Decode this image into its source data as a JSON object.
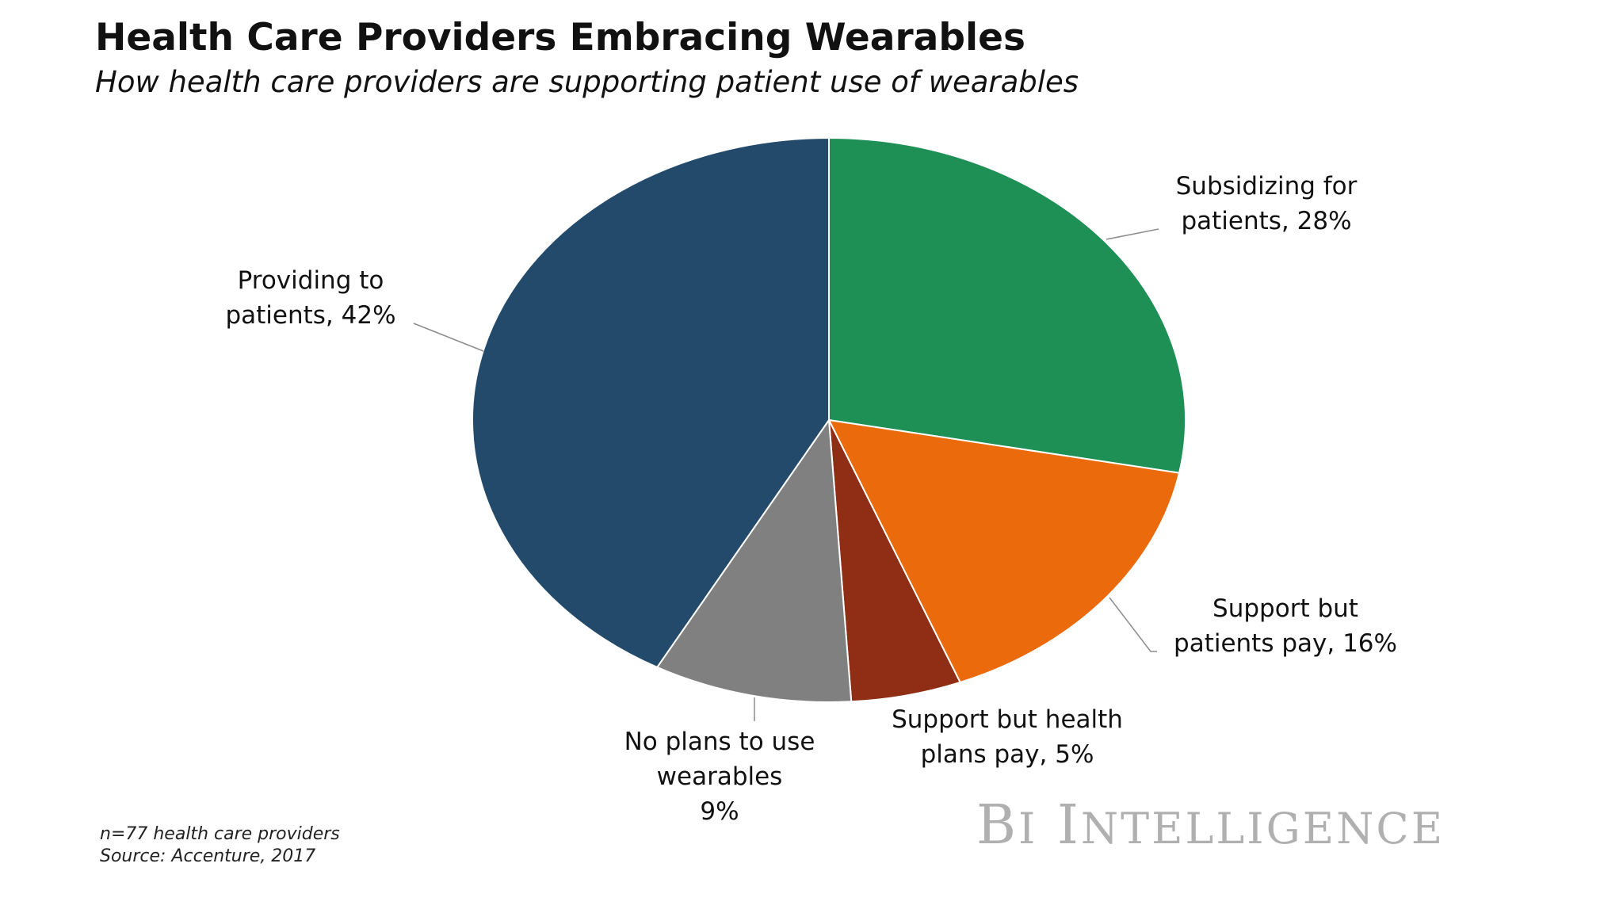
{
  "chart_data": {
    "type": "pie",
    "title": "Health Care Providers Embracing Wearables",
    "subtitle": "How health care providers are supporting patient use of wearables",
    "slices": [
      {
        "name": "Subsidizing for patients",
        "value": 28,
        "label_lines": [
          "Subsidizing for",
          "patients, 28%"
        ],
        "color": "#1e9055"
      },
      {
        "name": "Support but patients pay",
        "value": 16,
        "label_lines": [
          "Support but",
          "patients pay, 16%"
        ],
        "color": "#eb6a0c"
      },
      {
        "name": "Support but health plans pay",
        "value": 5,
        "label_lines": [
          "Support but health",
          "plans pay, 5%"
        ],
        "color": "#8f2e14"
      },
      {
        "name": "No plans to use wearables",
        "value": 9,
        "label_lines": [
          "No plans to use",
          "wearables",
          "9%"
        ],
        "color": "#808080"
      },
      {
        "name": "Providing to patients",
        "value": 42,
        "label_lines": [
          "Providing to",
          "patients, 42%"
        ],
        "color": "#234a6b"
      }
    ]
  },
  "footnotes": {
    "sample": "n=77 health care providers",
    "source": "Source: Accenture, 2017"
  },
  "brand": {
    "text": "BI INTELLIGENCE"
  }
}
